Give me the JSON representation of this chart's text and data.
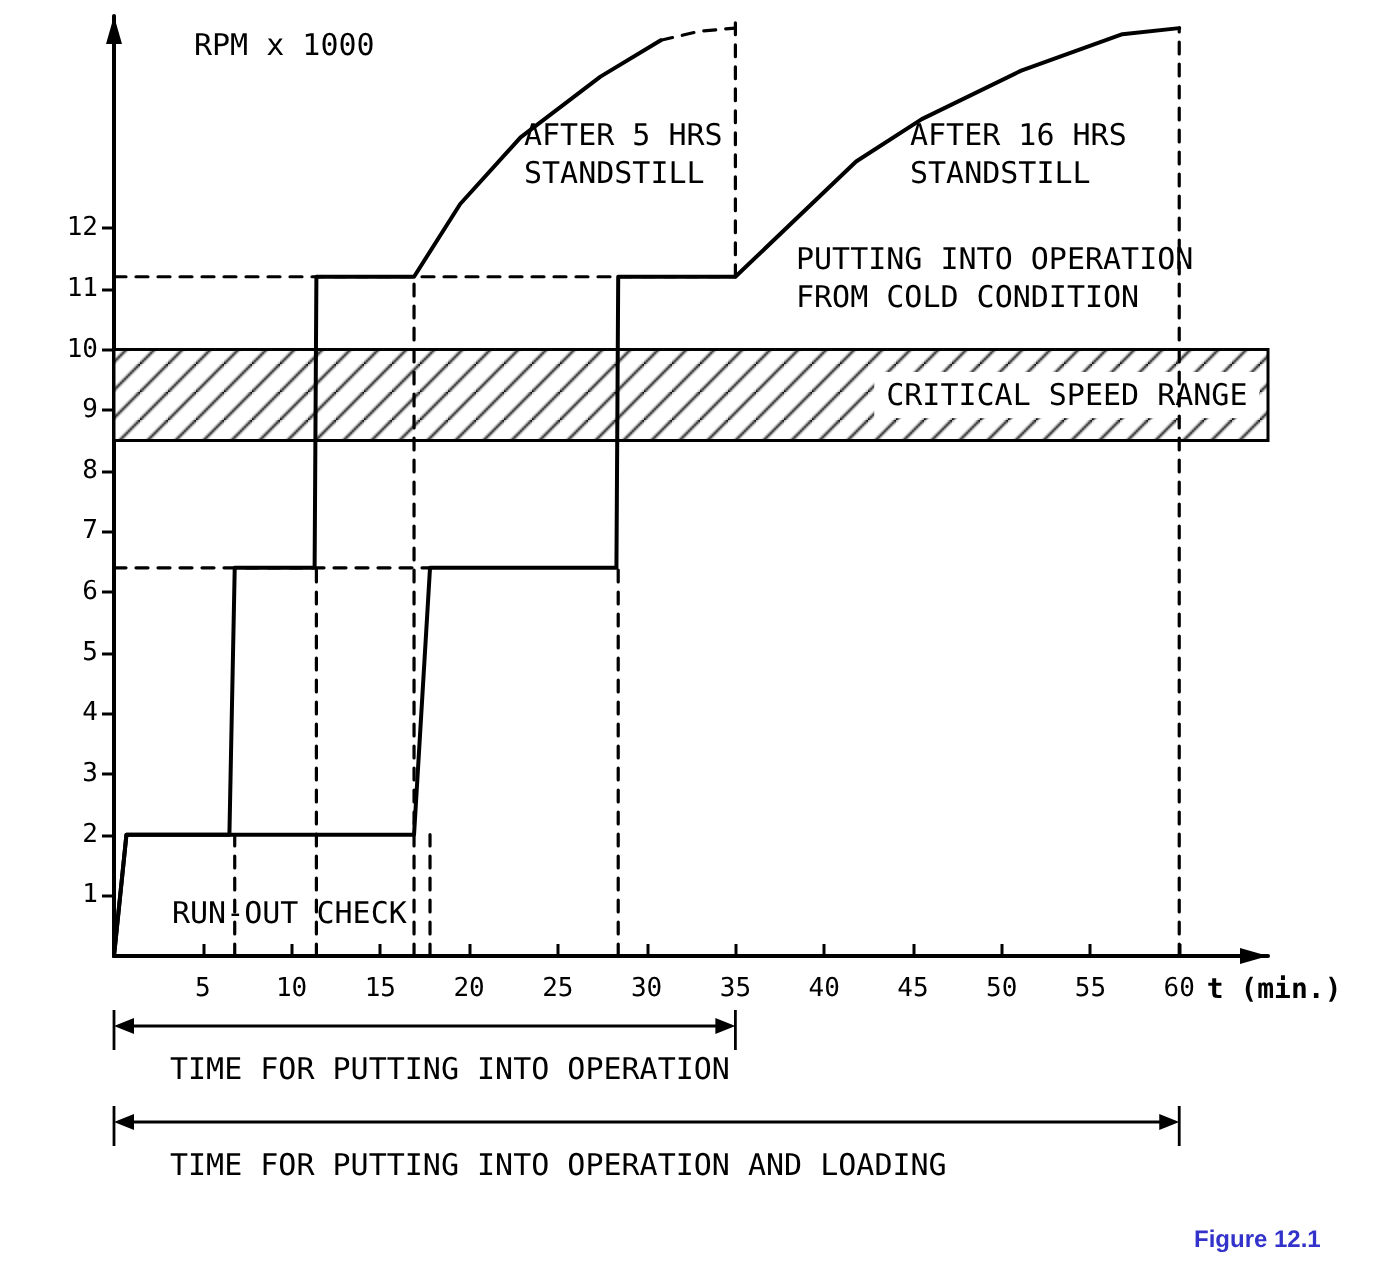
{
  "chart_data": {
    "type": "line",
    "xlabel": "t (min.)",
    "ylabel": "RPM x 1000",
    "xlim": [
      0,
      65
    ],
    "ylim": [
      0,
      15.5
    ],
    "xticks": [
      5,
      10,
      15,
      20,
      25,
      30,
      35,
      40,
      45,
      50,
      55,
      60
    ],
    "yticks": [
      1,
      2,
      3,
      4,
      5,
      6,
      7,
      8,
      9,
      10,
      11,
      12
    ],
    "grid": false,
    "legend": false,
    "marker": "none",
    "series": [
      {
        "name": "AFTER 5 HRS STANDSTILL",
        "color": "#000000",
        "line_style": "solid",
        "x": [
          0,
          0.7,
          6.5,
          6.8,
          11.3,
          11.4,
          16.9,
          19.5,
          22.9,
          27.4,
          30.8
        ],
        "values": [
          0,
          2,
          2,
          6.4,
          6.4,
          11.2,
          11.2,
          12.4,
          13.5,
          14.5,
          15.1
        ]
      },
      {
        "color": "#000000",
        "line_style": "dashed",
        "x": [
          30.8,
          33,
          35
        ],
        "values": [
          15.1,
          15.25,
          15.3
        ]
      },
      {
        "name": "AFTER 16 HRS STANDSTILL",
        "color": "#000000",
        "line_style": "solid",
        "x": [
          0,
          0.7,
          16.9,
          17.8,
          28.3,
          28.4,
          35,
          41.8,
          45.5,
          51.1,
          56.8,
          60
        ],
        "values": [
          0,
          2,
          2,
          6.4,
          6.4,
          11.2,
          11.2,
          13.1,
          13.8,
          14.6,
          15.2,
          15.3
        ]
      },
      {
        "color": "#000000",
        "line_style": "dashed",
        "x": [
          0,
          35
        ],
        "values": [
          11.2,
          11.2
        ]
      },
      {
        "color": "#000000",
        "line_style": "dashed",
        "x": [
          0,
          17.8
        ],
        "values": [
          6.4,
          6.4
        ]
      },
      {
        "color": "#000000",
        "line_style": "dashed",
        "x": [
          6.8,
          6.8
        ],
        "values": [
          0,
          2
        ]
      },
      {
        "color": "#000000",
        "line_style": "dashed",
        "x": [
          11.4,
          11.4
        ],
        "values": [
          0,
          6.4
        ]
      },
      {
        "color": "#000000",
        "line_style": "dashed",
        "x": [
          16.9,
          16.9
        ],
        "values": [
          0,
          11.2
        ]
      },
      {
        "color": "#000000",
        "line_style": "dashed",
        "x": [
          17.8,
          17.8
        ],
        "values": [
          0,
          2
        ]
      },
      {
        "color": "#000000",
        "line_style": "dashed",
        "x": [
          28.4,
          28.4
        ],
        "values": [
          0,
          6.4
        ]
      },
      {
        "color": "#000000",
        "line_style": "dashed",
        "x": [
          35,
          35
        ],
        "values": [
          11.2,
          15.5
        ]
      },
      {
        "color": "#000000",
        "line_style": "dashed",
        "x": [
          60,
          60
        ],
        "values": [
          0,
          15.3
        ]
      }
    ],
    "bands": [
      {
        "axis": "y",
        "from": 8.5,
        "to": 10,
        "label": "CRITICAL SPEED RANGE"
      }
    ],
    "annotations": [
      "TIME FOR PUTTING INTO OPERATION",
      "TIME FOR PUTTING INTO OPERATION AND LOADING",
      "PUTTING INTO OPERATION FROM COLD CONDITION",
      "RUN-OUT CHECK",
      "Figure 12.1"
    ]
  }
}
